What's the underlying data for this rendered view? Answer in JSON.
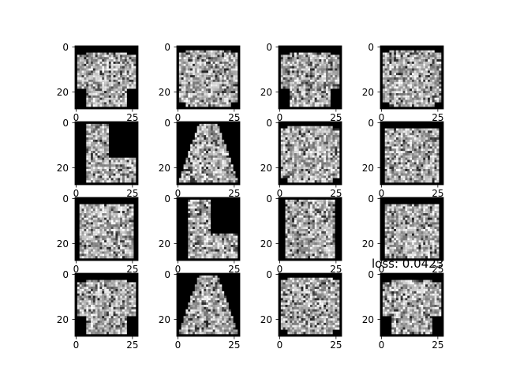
{
  "figure": {
    "rows": 4,
    "cols": 4,
    "loss_text": "loss: 0.0423",
    "axis": {
      "y_tick_labels": [
        "0",
        "20"
      ],
      "x_tick_labels": [
        "0",
        "25"
      ],
      "x_ticks_visible_on": "all panels (overlapped by panel below except bottom row)"
    },
    "image_colormap": "gray",
    "image_size": "28x28",
    "panel_subjects": [
      [
        "shirt",
        "pullover",
        "shirt",
        "pullover"
      ],
      [
        "ankle-boot",
        "dress",
        "pullover",
        "bag"
      ],
      [
        "bag",
        "ankle-boot",
        "coat",
        "bag"
      ],
      [
        "shirt",
        "dress",
        "pullover",
        "shirt"
      ]
    ]
  }
}
